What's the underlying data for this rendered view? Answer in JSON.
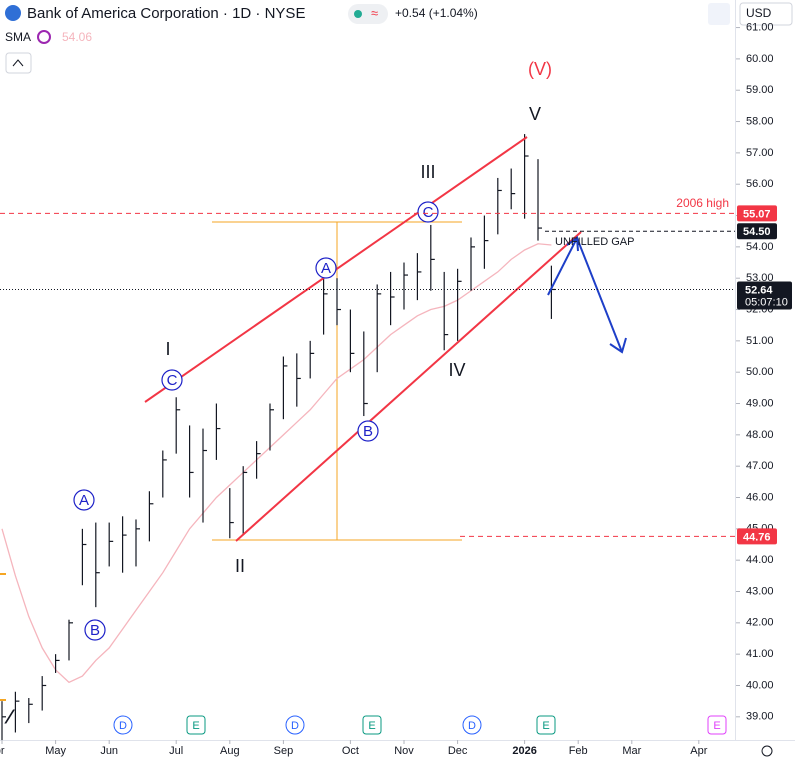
{
  "chart_data": {
    "type": "ohlc",
    "title": "Bank of America Corporation · 1D · NYSE",
    "change": "+0.54 (+1.04%)",
    "currency": "USD",
    "categories": [
      "Apr",
      null,
      null,
      null,
      "May",
      null,
      null,
      null,
      "Jun",
      null,
      null,
      null,
      null,
      "Jul",
      null,
      null,
      null,
      "Aug",
      null,
      null,
      null,
      "Sep",
      null,
      null,
      null,
      null,
      "Oct",
      null,
      null,
      null,
      "Nov",
      null,
      null,
      null,
      "Dec",
      null,
      null,
      null,
      null,
      "2026",
      null,
      null,
      null,
      "Feb",
      null,
      null,
      null,
      "Mar",
      null,
      null,
      null,
      null,
      "Apr"
    ],
    "series": [
      {
        "color": "#131722",
        "high": [
          39.5,
          39.8,
          39.6,
          40.3,
          41.0,
          42.1,
          45.0,
          45.2,
          45.2,
          45.4,
          45.3,
          46.2,
          47.5,
          49.2,
          48.3,
          48.2,
          49.0,
          46.3,
          47.0,
          47.8,
          49.0,
          50.5,
          50.6,
          51.0,
          53.0,
          53.0,
          52.0,
          51.3,
          52.8,
          53.2,
          53.5,
          53.8,
          54.7,
          53.2,
          53.3,
          54.3,
          55.0,
          56.2,
          56.5,
          57.6,
          56.8,
          53.4,
          null,
          null,
          null,
          null,
          null,
          null,
          null,
          null,
          null,
          null,
          null
        ],
        "low": [
          37.5,
          38.5,
          38.8,
          39.2,
          40.4,
          40.8,
          43.2,
          42.5,
          43.8,
          43.6,
          43.8,
          44.6,
          46.0,
          47.4,
          46.0,
          45.2,
          47.2,
          44.7,
          44.8,
          46.6,
          47.5,
          48.5,
          48.9,
          49.8,
          51.2,
          51.5,
          50.0,
          48.6,
          50.0,
          51.5,
          52.0,
          52.3,
          52.6,
          50.7,
          51.0,
          52.6,
          53.3,
          54.4,
          55.2,
          54.9,
          54.2,
          51.7,
          null,
          null,
          null,
          null,
          null,
          null,
          null,
          null,
          null,
          null,
          null
        ],
        "close": [
          39,
          39.5,
          39.4,
          40,
          40.8,
          42,
          44.5,
          43.6,
          44.6,
          44.8,
          45,
          45.8,
          47.2,
          48.8,
          46.8,
          47.5,
          48.2,
          45.2,
          46.8,
          47.4,
          48.8,
          50.2,
          49.8,
          50.6,
          52.5,
          52,
          50.6,
          49,
          52.5,
          52.4,
          53.1,
          53.2,
          53.6,
          51.2,
          52.9,
          54,
          54.2,
          55.8,
          55.7,
          56.9,
          54.6,
          52.64,
          null,
          null,
          null,
          null,
          null,
          null,
          null,
          null,
          null,
          null,
          null
        ]
      },
      {
        "name": "SMA",
        "color": "#f5b5bd",
        "values": [
          45.0,
          43.5,
          42.2,
          41.2,
          40.5,
          40.1,
          40.3,
          40.8,
          41.2,
          41.8,
          42.4,
          43.0,
          43.6,
          44.3,
          45.0,
          45.5,
          46.0,
          46.4,
          46.8,
          47.2,
          47.6,
          48.0,
          48.4,
          48.8,
          49.3,
          49.8,
          50.1,
          50.4,
          50.8,
          51.2,
          51.5,
          51.8,
          52.0,
          52.1,
          52.3,
          52.6,
          52.9,
          53.2,
          53.6,
          53.9,
          54.1,
          54.06,
          null,
          null,
          null,
          null,
          null,
          null,
          null,
          null,
          null,
          null,
          null
        ]
      }
    ],
    "countdown": "05:07:10",
    "levels": [
      {
        "value": 55.07,
        "color": "#f23645"
      },
      {
        "value": 54.5,
        "label": "54.50",
        "color": "#131722"
      },
      {
        "value": 44.76,
        "color": "#f23645"
      }
    ],
    "ylim": [
      38.26,
      61.72
    ],
    "yticks": [
      {
        "value": 39,
        "label": "39.00"
      },
      {
        "value": 40,
        "label": "40.00"
      },
      {
        "value": 41,
        "label": "41.00"
      },
      {
        "value": 42,
        "label": "42.00"
      },
      {
        "value": 43,
        "label": "43.00"
      },
      {
        "value": 44,
        "label": "44.00"
      },
      {
        "value": 45,
        "label": "45.00"
      },
      {
        "value": 46,
        "label": "46.00"
      },
      {
        "value": 47,
        "label": "47.00"
      },
      {
        "value": 48,
        "label": "48.00"
      },
      {
        "value": 49,
        "label": "49.00"
      },
      {
        "value": 50,
        "label": "50.00"
      },
      {
        "value": 51,
        "label": "51.00"
      },
      {
        "value": 52,
        "label": "52.00"
      },
      {
        "value": 53,
        "label": "53.00"
      },
      {
        "value": 54,
        "label": "54.00"
      },
      {
        "value": 55,
        "label": "55.00"
      },
      {
        "value": 56,
        "label": "56.00"
      },
      {
        "value": 57,
        "label": "57.00"
      },
      {
        "value": 58,
        "label": "58.00"
      },
      {
        "value": 59,
        "label": "59.00"
      },
      {
        "value": 60,
        "label": "60.00"
      },
      {
        "value": 61,
        "label": "61.00"
      }
    ],
    "waves": [
      "I",
      "II",
      "III",
      "IV",
      "V",
      "(V)"
    ],
    "subwaves": [
      "A",
      "B",
      "C",
      "A",
      "B",
      "C"
    ],
    "notes": [
      "2006 high",
      "UNFILLED GAP"
    ],
    "events": [
      "D",
      "E",
      "D",
      "E",
      "D",
      "E",
      "E"
    ]
  }
}
